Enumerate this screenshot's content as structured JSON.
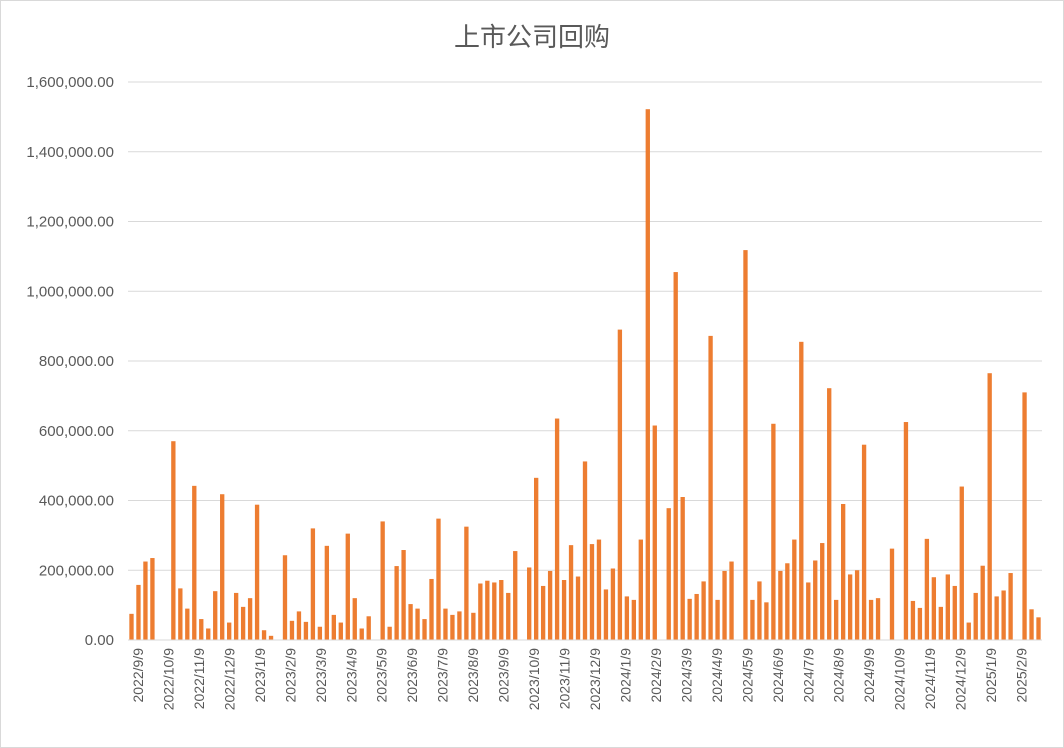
{
  "chart_data": {
    "type": "bar",
    "title": "上市公司回购",
    "xlabel": "",
    "ylabel": "",
    "ylim": [
      0,
      1600000
    ],
    "yticks": [
      0,
      200000,
      400000,
      600000,
      800000,
      1000000,
      1200000,
      1400000,
      1600000
    ],
    "ytick_labels": [
      "0.00",
      "200,000.00",
      "400,000.00",
      "600,000.00",
      "800,000.00",
      "1,000,000.00",
      "1,200,000.00",
      "1,400,000.00",
      "1,600,000.00"
    ],
    "x_tick_labels": [
      "2022/9/9",
      "2022/10/9",
      "2022/11/9",
      "2022/12/9",
      "2023/1/9",
      "2023/2/9",
      "2023/3/9",
      "2023/4/9",
      "2023/5/9",
      "2023/6/9",
      "2023/7/9",
      "2023/8/9",
      "2023/9/9",
      "2023/10/9",
      "2023/11/9",
      "2023/12/9",
      "2024/1/9",
      "2024/2/9",
      "2024/3/9",
      "2024/4/9",
      "2024/5/9",
      "2024/6/9",
      "2024/7/9",
      "2024/8/9",
      "2024/9/9",
      "2024/10/9",
      "2024/11/9",
      "2024/12/9",
      "2025/1/9",
      "2025/2/9"
    ],
    "grid": true,
    "legend": "none",
    "bar_color": "#ed7d31",
    "values": [
      75000,
      158000,
      225000,
      235000,
      0,
      0,
      570000,
      148000,
      90000,
      442000,
      60000,
      33000,
      140000,
      418000,
      50000,
      135000,
      95000,
      120000,
      388000,
      28000,
      12000,
      0,
      243000,
      55000,
      82000,
      52000,
      320000,
      38000,
      270000,
      72000,
      50000,
      305000,
      120000,
      33000,
      68000,
      0,
      340000,
      38000,
      212000,
      258000,
      103000,
      90000,
      60000,
      175000,
      348000,
      90000,
      72000,
      82000,
      325000,
      78000,
      162000,
      170000,
      165000,
      172000,
      135000,
      255000,
      0,
      208000,
      465000,
      155000,
      198000,
      635000,
      172000,
      272000,
      182000,
      512000,
      275000,
      288000,
      145000,
      205000,
      890000,
      125000,
      115000,
      288000,
      1522000,
      615000,
      0,
      378000,
      1055000,
      410000,
      118000,
      132000,
      168000,
      872000,
      115000,
      198000,
      225000,
      0,
      1118000,
      115000,
      168000,
      108000,
      620000,
      198000,
      220000,
      288000,
      855000,
      165000,
      228000,
      278000,
      722000,
      115000,
      390000,
      188000,
      200000,
      560000,
      115000,
      120000,
      0,
      262000,
      0,
      625000,
      112000,
      92000,
      290000,
      180000,
      95000,
      188000,
      155000,
      440000,
      50000,
      135000,
      213000,
      765000,
      125000,
      142000,
      192000,
      0,
      710000,
      88000,
      65000
    ]
  }
}
